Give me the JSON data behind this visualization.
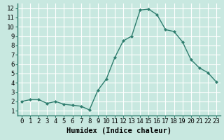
{
  "x": [
    0,
    1,
    2,
    3,
    4,
    5,
    6,
    7,
    8,
    9,
    10,
    11,
    12,
    13,
    14,
    15,
    16,
    17,
    18,
    19,
    20,
    21,
    22,
    23
  ],
  "y": [
    2,
    2.2,
    2.2,
    1.8,
    2.0,
    1.7,
    1.6,
    1.5,
    1.1,
    3.2,
    4.4,
    6.7,
    8.5,
    9.0,
    11.8,
    11.9,
    11.3,
    9.7,
    9.5,
    8.4,
    6.5,
    5.6,
    5.1,
    4.1
  ],
  "line_color": "#2e7d6e",
  "marker": "D",
  "marker_size": 2.0,
  "line_width": 1.0,
  "bg_color": "#c8e8e0",
  "grid_color": "#a8c8c0",
  "xlabel": "Humidex (Indice chaleur)",
  "xlim": [
    -0.5,
    23.5
  ],
  "ylim": [
    0.5,
    12.5
  ],
  "yticks": [
    1,
    2,
    3,
    4,
    5,
    6,
    7,
    8,
    9,
    10,
    11,
    12
  ],
  "xticks": [
    0,
    1,
    2,
    3,
    4,
    5,
    6,
    7,
    8,
    9,
    10,
    11,
    12,
    13,
    14,
    15,
    16,
    17,
    18,
    19,
    20,
    21,
    22,
    23
  ],
  "xlabel_fontsize": 7.5,
  "tick_fontsize": 6.5
}
